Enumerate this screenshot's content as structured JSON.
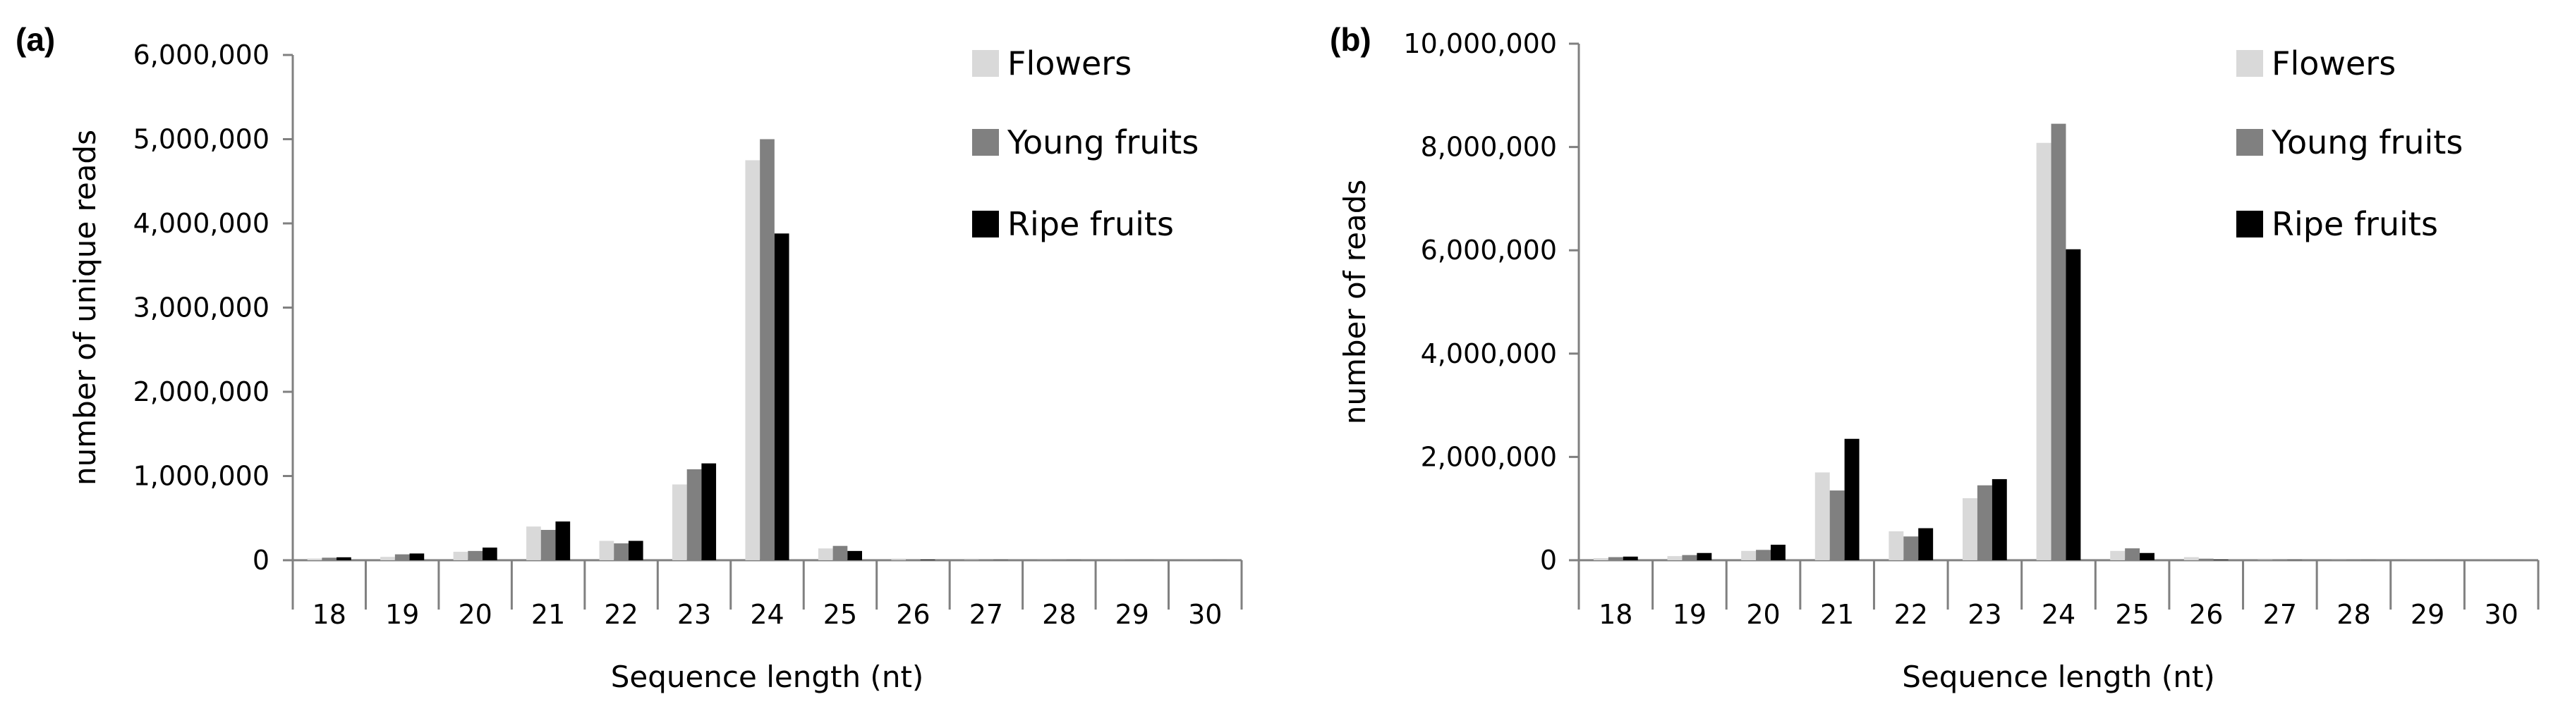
{
  "chart_data": [
    {
      "type": "bar",
      "panel_label": "(a)",
      "title": "",
      "xlabel": "Sequence length (nt)",
      "ylabel": "number of unique reads",
      "ylim": [
        0,
        6000000
      ],
      "yticks": [
        0,
        1000000,
        2000000,
        3000000,
        4000000,
        5000000,
        6000000
      ],
      "ytick_labels": [
        "0",
        "1,000,000",
        "2,000,000",
        "3,000,000",
        "4,000,000",
        "5,000,000",
        "6,000,000"
      ],
      "grid": false,
      "legend": "top-right",
      "categories": [
        "18",
        "19",
        "20",
        "21",
        "22",
        "23",
        "24",
        "25",
        "26",
        "27",
        "28",
        "29",
        "30"
      ],
      "series": [
        {
          "name": "Flowers",
          "color": "#d9d9d9",
          "values": [
            20000,
            40000,
            100000,
            400000,
            230000,
            900000,
            4750000,
            140000,
            8000,
            3000,
            1000,
            1000,
            500
          ]
        },
        {
          "name": "Young fruits",
          "color": "#808080",
          "values": [
            30000,
            70000,
            110000,
            360000,
            200000,
            1080000,
            5000000,
            170000,
            10000,
            4000,
            1500,
            1000,
            500
          ]
        },
        {
          "name": "Ripe fruits",
          "color": "#000000",
          "values": [
            35000,
            80000,
            150000,
            460000,
            230000,
            1150000,
            3880000,
            110000,
            6000,
            2000,
            1000,
            500,
            500
          ]
        }
      ]
    },
    {
      "type": "bar",
      "panel_label": "(b)",
      "title": "",
      "xlabel": "Sequence length (nt)",
      "ylabel": "number of reads",
      "ylim": [
        0,
        10000000
      ],
      "yticks": [
        0,
        2000000,
        4000000,
        6000000,
        8000000,
        10000000
      ],
      "ytick_labels": [
        "0",
        "2,000,000",
        "4,000,000",
        "6,000,000",
        "8,000,000",
        "10,000,000"
      ],
      "grid": false,
      "legend": "top-right",
      "categories": [
        "18",
        "19",
        "20",
        "21",
        "22",
        "23",
        "24",
        "25",
        "26",
        "27",
        "28",
        "29",
        "30"
      ],
      "series": [
        {
          "name": "Flowers",
          "color": "#d9d9d9",
          "values": [
            40000,
            80000,
            180000,
            1700000,
            560000,
            1200000,
            8080000,
            180000,
            60000,
            5000,
            2000,
            1000,
            500
          ]
        },
        {
          "name": "Young fruits",
          "color": "#808080",
          "values": [
            60000,
            100000,
            200000,
            1350000,
            460000,
            1450000,
            8450000,
            230000,
            30000,
            5000,
            2000,
            1000,
            500
          ]
        },
        {
          "name": "Ripe fruits",
          "color": "#000000",
          "values": [
            70000,
            140000,
            300000,
            2350000,
            620000,
            1570000,
            6020000,
            140000,
            10000,
            3000,
            1000,
            500,
            500
          ]
        }
      ]
    }
  ]
}
